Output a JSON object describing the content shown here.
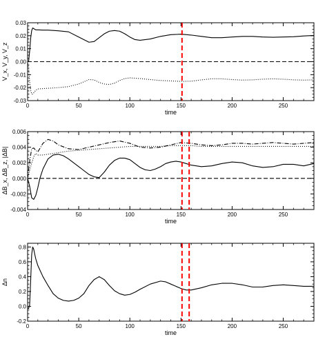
{
  "chart_data": [
    {
      "type": "line",
      "title": "",
      "xlabel": "time",
      "ylabel": "V_x, V_y, V_z",
      "xlim": [
        0,
        280
      ],
      "ylim": [
        -0.03,
        0.03
      ],
      "xticks": [
        0,
        50,
        100,
        150,
        200,
        250
      ],
      "xtick_labels": [
        "0",
        "50",
        "100",
        "150",
        "200",
        "250"
      ],
      "yticks": [
        -0.03,
        -0.02,
        -0.01,
        0.0,
        0.01,
        0.02,
        0.03
      ],
      "ytick_labels": [
        "-0.03",
        "-0.02",
        "-0.01",
        "0.00",
        "0.01",
        "0.02",
        "0.03"
      ],
      "grid": false,
      "vlines": [
        {
          "x": 151,
          "color": "#ff0000",
          "style": "dashed"
        }
      ],
      "series": [
        {
          "style": "solid",
          "x": [
            0,
            1,
            2,
            3,
            4,
            5,
            6,
            7,
            8,
            10,
            15,
            20,
            30,
            40,
            50,
            55,
            60,
            65,
            70,
            75,
            80,
            85,
            90,
            95,
            100,
            105,
            110,
            120,
            130,
            140,
            150,
            160,
            170,
            180,
            190,
            200,
            210,
            220,
            230,
            240,
            250,
            260,
            270,
            280
          ],
          "y": [
            0.0,
            0.0,
            0.008,
            0.018,
            0.024,
            0.026,
            0.0255,
            0.025,
            0.0245,
            0.0245,
            0.0243,
            0.0243,
            0.0238,
            0.023,
            0.019,
            0.017,
            0.015,
            0.0155,
            0.0185,
            0.0215,
            0.0235,
            0.024,
            0.0235,
            0.0215,
            0.019,
            0.017,
            0.0165,
            0.0175,
            0.0195,
            0.0208,
            0.0212,
            0.0205,
            0.0195,
            0.0185,
            0.0185,
            0.019,
            0.0195,
            0.0195,
            0.019,
            0.0188,
            0.019,
            0.0192,
            0.0198,
            0.0202
          ]
        },
        {
          "style": "dashed",
          "x": [
            0,
            280
          ],
          "y": [
            0.0,
            0.0
          ]
        },
        {
          "style": "dotted",
          "x": [
            0,
            1,
            2,
            3,
            4,
            5,
            6,
            8,
            10,
            20,
            30,
            40,
            50,
            55,
            60,
            65,
            70,
            75,
            80,
            85,
            90,
            95,
            100,
            110,
            120,
            130,
            140,
            150,
            160,
            170,
            180,
            190,
            200,
            210,
            220,
            230,
            240,
            250,
            260,
            270,
            280
          ],
          "y": [
            0.0,
            -0.005,
            -0.015,
            -0.022,
            -0.025,
            -0.025,
            -0.024,
            -0.022,
            -0.021,
            -0.0205,
            -0.02,
            -0.0192,
            -0.0172,
            -0.0155,
            -0.0138,
            -0.014,
            -0.016,
            -0.0172,
            -0.0176,
            -0.0165,
            -0.0145,
            -0.013,
            -0.0125,
            -0.013,
            -0.0138,
            -0.0145,
            -0.0148,
            -0.0152,
            -0.015,
            -0.014,
            -0.0132,
            -0.0132,
            -0.0138,
            -0.0142,
            -0.014,
            -0.0135,
            -0.0132,
            -0.0135,
            -0.014,
            -0.0142,
            -0.014
          ]
        }
      ]
    },
    {
      "type": "line",
      "title": "",
      "xlabel": "time",
      "ylabel": "ΔB_x, ΔB_z, |ΔB|",
      "xlim": [
        0,
        280
      ],
      "ylim": [
        -0.004,
        0.006
      ],
      "xticks": [
        0,
        50,
        100,
        150,
        200,
        250
      ],
      "xtick_labels": [
        "0",
        "50",
        "100",
        "150",
        "200",
        "250"
      ],
      "yticks": [
        -0.004,
        -0.002,
        0.0,
        0.002,
        0.004,
        0.006
      ],
      "ytick_labels": [
        "-0.004",
        "-0.002",
        "0.000",
        "0.002",
        "0.004",
        "0.006"
      ],
      "grid": false,
      "vlines": [
        {
          "x": 151,
          "color": "#ff0000",
          "style": "dashed"
        },
        {
          "x": 158,
          "color": "#ff0000",
          "style": "dashed"
        }
      ],
      "series": [
        {
          "style": "solid",
          "x": [
            0,
            2,
            4,
            6,
            8,
            10,
            12,
            15,
            20,
            25,
            30,
            35,
            40,
            45,
            50,
            55,
            60,
            65,
            70,
            75,
            80,
            85,
            90,
            95,
            100,
            105,
            110,
            115,
            120,
            125,
            130,
            135,
            140,
            145,
            150,
            155,
            160,
            170,
            180,
            190,
            200,
            210,
            220,
            230,
            240,
            250,
            260,
            270,
            280
          ],
          "y": [
            0.0,
            -0.001,
            -0.0025,
            -0.0027,
            -0.0022,
            -0.0012,
            0.0,
            0.0012,
            0.0025,
            0.003,
            0.0031,
            0.0029,
            0.0025,
            0.002,
            0.0015,
            0.001,
            0.0005,
            0.0002,
            0.0001,
            0.0008,
            0.0017,
            0.0023,
            0.0026,
            0.0026,
            0.0024,
            0.0019,
            0.0014,
            0.0011,
            0.001,
            0.0012,
            0.0015,
            0.0019,
            0.0021,
            0.0022,
            0.0021,
            0.0019,
            0.0017,
            0.0015,
            0.0016,
            0.0019,
            0.0021,
            0.002,
            0.0016,
            0.0014,
            0.0015,
            0.0018,
            0.0018,
            0.0016,
            0.0019
          ]
        },
        {
          "style": "dashed",
          "x": [
            0,
            280
          ],
          "y": [
            0.0,
            0.0
          ]
        },
        {
          "style": "dotted",
          "x": [
            0,
            3,
            6,
            8,
            10,
            15,
            20,
            25,
            30,
            40,
            50,
            60,
            70,
            80,
            90,
            100,
            110,
            120,
            130,
            140,
            150,
            160,
            170,
            180,
            200,
            220,
            240,
            260,
            280
          ],
          "y": [
            0.0,
            0.0015,
            0.0028,
            0.0032,
            0.003,
            0.003,
            0.0031,
            0.0032,
            0.0033,
            0.0035,
            0.0036,
            0.0037,
            0.0038,
            0.0039,
            0.004,
            0.0041,
            0.0041,
            0.0041,
            0.0041,
            0.0042,
            0.0042,
            0.0042,
            0.0041,
            0.0041,
            0.0041,
            0.0041,
            0.0041,
            0.0041,
            0.0041
          ]
        },
        {
          "style": "dashdot",
          "x": [
            0,
            2,
            4,
            6,
            8,
            10,
            15,
            20,
            25,
            30,
            40,
            50,
            60,
            70,
            80,
            90,
            100,
            110,
            120,
            130,
            140,
            150,
            160,
            170,
            180,
            190,
            200,
            210,
            220,
            230,
            240,
            250,
            260,
            270,
            280
          ],
          "y": [
            0.0,
            0.0022,
            0.0038,
            0.0039,
            0.0036,
            0.0034,
            0.0045,
            0.005,
            0.0048,
            0.0043,
            0.0038,
            0.0037,
            0.004,
            0.0043,
            0.0046,
            0.0048,
            0.0045,
            0.004,
            0.0039,
            0.004,
            0.0043,
            0.0046,
            0.0045,
            0.0043,
            0.0042,
            0.0043,
            0.0045,
            0.0045,
            0.0044,
            0.0045,
            0.0046,
            0.0045,
            0.0044,
            0.0045,
            0.0046
          ]
        }
      ]
    },
    {
      "type": "line",
      "title": "",
      "xlabel": "time",
      "ylabel": "Δn",
      "xlim": [
        0,
        280
      ],
      "ylim": [
        -0.2,
        0.85
      ],
      "xticks": [
        0,
        50,
        100,
        150,
        200,
        250
      ],
      "xtick_labels": [
        "0",
        "50",
        "100",
        "150",
        "200",
        "250"
      ],
      "yticks": [
        -0.2,
        0.0,
        0.2,
        0.4,
        0.6,
        0.8
      ],
      "ytick_labels": [
        "-0.2",
        "0.0",
        "0.2",
        "0.4",
        "0.6",
        "0.8"
      ],
      "grid": false,
      "vlines": [
        {
          "x": 151,
          "color": "#ff0000",
          "style": "dashed"
        },
        {
          "x": 158,
          "color": "#ff0000",
          "style": "dashed"
        }
      ],
      "series": [
        {
          "style": "solid",
          "x": [
            0,
            1,
            2,
            3,
            4,
            5,
            6,
            7,
            8,
            10,
            15,
            20,
            25,
            30,
            35,
            40,
            45,
            50,
            55,
            60,
            65,
            70,
            75,
            80,
            85,
            90,
            95,
            100,
            105,
            110,
            120,
            130,
            135,
            140,
            150,
            155,
            160,
            170,
            180,
            190,
            200,
            210,
            220,
            230,
            240,
            250,
            260,
            270,
            280
          ],
          "y": [
            -0.02,
            -0.03,
            0.02,
            0.35,
            0.7,
            0.8,
            0.77,
            0.7,
            0.64,
            0.55,
            0.4,
            0.28,
            0.17,
            0.11,
            0.08,
            0.07,
            0.08,
            0.11,
            0.17,
            0.28,
            0.36,
            0.4,
            0.36,
            0.28,
            0.21,
            0.17,
            0.15,
            0.16,
            0.19,
            0.23,
            0.3,
            0.34,
            0.33,
            0.3,
            0.24,
            0.22,
            0.22,
            0.25,
            0.29,
            0.31,
            0.31,
            0.29,
            0.26,
            0.26,
            0.28,
            0.29,
            0.28,
            0.27,
            0.27
          ]
        }
      ]
    }
  ]
}
